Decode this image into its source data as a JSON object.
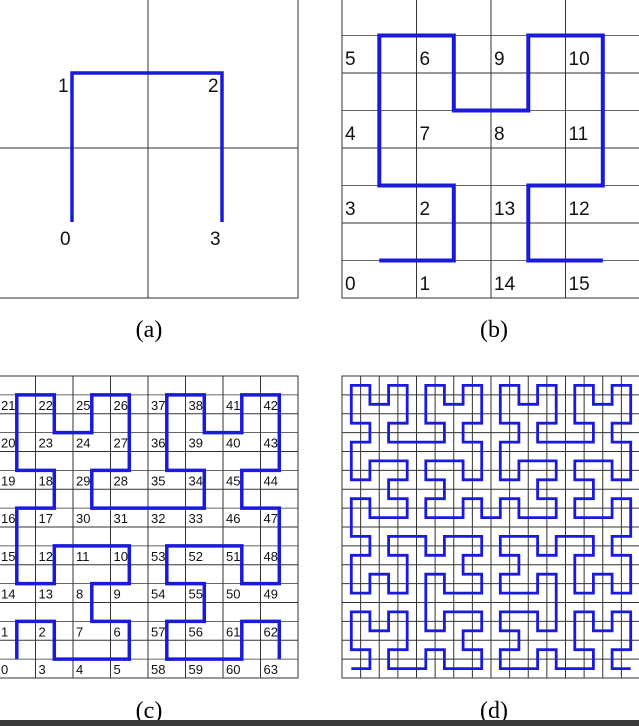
{
  "panels": [
    {
      "id": "a",
      "caption": "(a)",
      "order": 1,
      "labels": [
        "0",
        "1",
        "2",
        "3"
      ]
    },
    {
      "id": "b",
      "caption": "(b)",
      "order": 2,
      "labels": [
        "0",
        "1",
        "2",
        "3",
        "4",
        "5",
        "6",
        "7",
        "8",
        "9",
        "10",
        "11",
        "12",
        "13",
        "14",
        "15"
      ]
    },
    {
      "id": "c",
      "caption": "(c)",
      "order": 3,
      "labels": [
        "0",
        "1",
        "2",
        "3",
        "4",
        "5",
        "6",
        "7",
        "8",
        "9",
        "10",
        "11",
        "12",
        "13",
        "14",
        "15",
        "16",
        "17",
        "18",
        "19",
        "20",
        "21",
        "22",
        "23",
        "24",
        "25",
        "26",
        "27",
        "28",
        "29",
        "30",
        "31",
        "32",
        "33",
        "34",
        "35",
        "36",
        "37",
        "38",
        "39",
        "40",
        "41",
        "42",
        "43",
        "44",
        "45",
        "46",
        "47",
        "48",
        "49",
        "50",
        "51",
        "52",
        "53",
        "54",
        "55",
        "56",
        "57",
        "58",
        "59",
        "60",
        "61",
        "62",
        "63"
      ]
    },
    {
      "id": "d",
      "caption": "(d)",
      "order": 4,
      "labels": []
    }
  ],
  "colors": {
    "curve": "#1a1adb",
    "grid": "#333333",
    "background": "#ffffff"
  }
}
